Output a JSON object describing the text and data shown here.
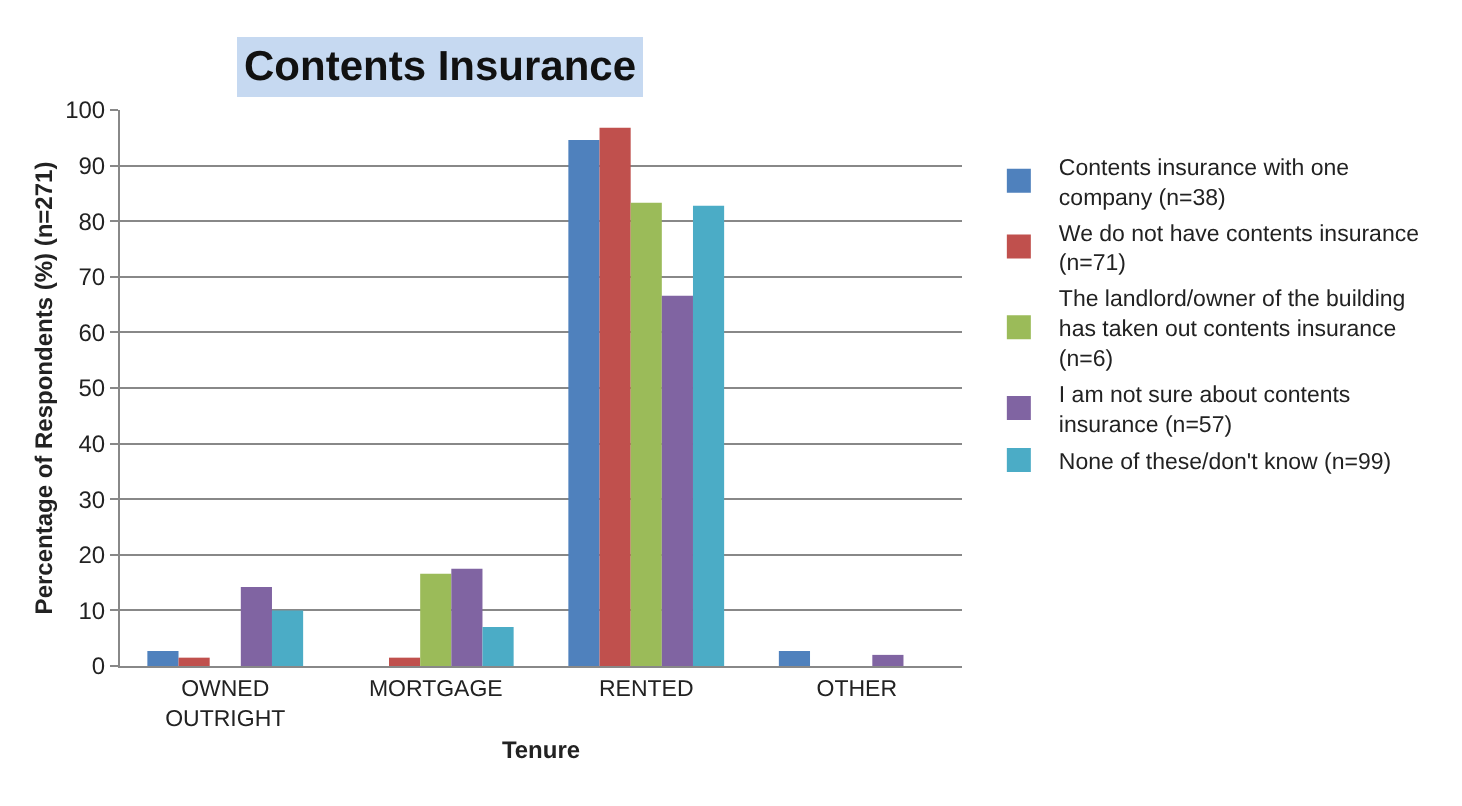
{
  "chart_data": {
    "type": "bar",
    "title": "Contents Insurance",
    "xlabel": "Tenure",
    "ylabel": "Percentage of Respondents (%) (n=271)",
    "categories": [
      "OWNED OUTRIGHT",
      "MORTGAGE",
      "RENTED",
      "OTHER"
    ],
    "series": [
      {
        "name": "Contents insurance with one company (n=38)",
        "color": "#4f81bd",
        "values": [
          2.7,
          0,
          94.6,
          2.7
        ]
      },
      {
        "name": "We do not have contents insurance (n=71)",
        "color": "#c0504d",
        "values": [
          1.5,
          1.5,
          96.8,
          0
        ]
      },
      {
        "name": "The landlord/owner of the building has taken out contents insurance (n=6)",
        "color": "#9bbb59",
        "values": [
          0,
          16.6,
          83.3,
          0
        ]
      },
      {
        "name": "I am not sure about contents insurance (n=57)",
        "color": "#8064a2",
        "values": [
          14.2,
          17.5,
          66.6,
          2
        ]
      },
      {
        "name": "None of these/don't know (n=99)",
        "color": "#4bacc6",
        "values": [
          10,
          7,
          82.8,
          0
        ]
      }
    ],
    "ylim": [
      0,
      100
    ],
    "yticks": [
      0,
      10,
      20,
      30,
      40,
      50,
      60,
      70,
      80,
      90,
      100
    ],
    "grid": "y",
    "legend": "right"
  }
}
